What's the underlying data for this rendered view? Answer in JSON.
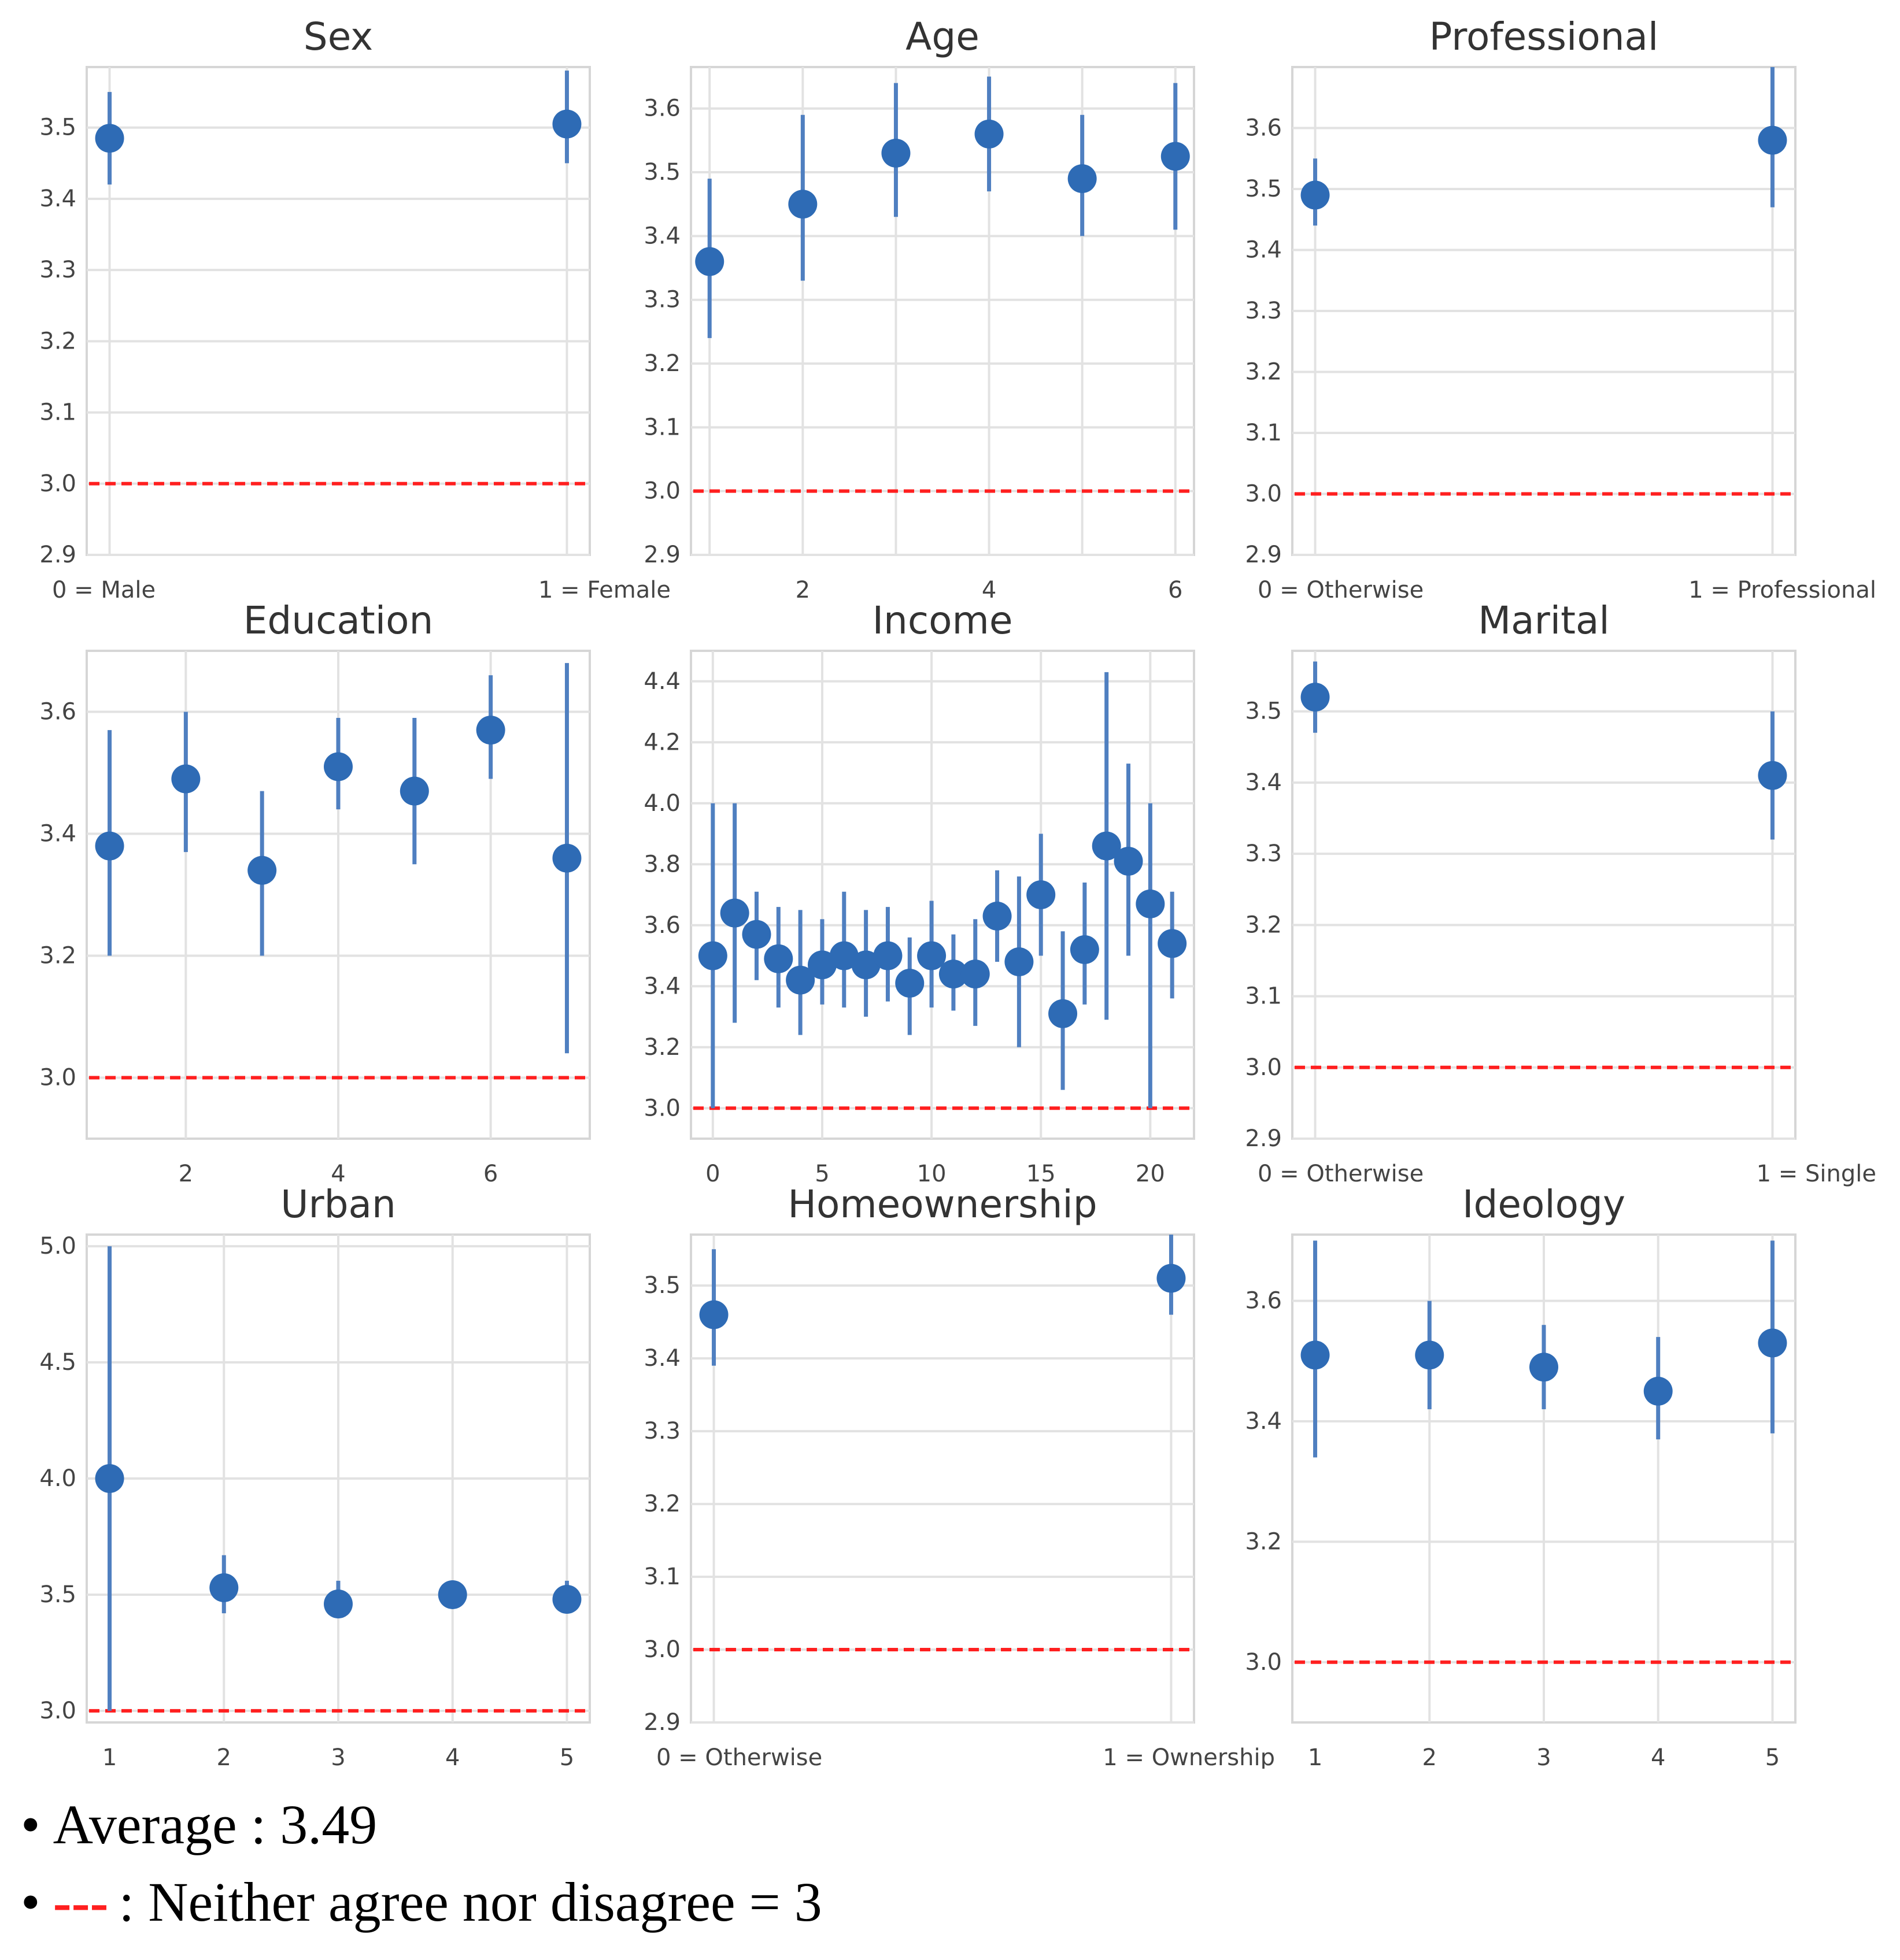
{
  "chart_data": [
    {
      "type": "scatter",
      "title": "Sex",
      "x": [
        0,
        1
      ],
      "y": [
        3.485,
        3.505
      ],
      "ci": [
        [
          3.42,
          3.55
        ],
        [
          3.45,
          3.58
        ]
      ],
      "xlim": [
        -0.05,
        1.05
      ],
      "ylim": [
        2.9,
        3.585
      ],
      "yticks": [
        {
          "v": 2.9,
          "label": "2.9"
        },
        {
          "v": 3.0,
          "label": "3.0"
        },
        {
          "v": 3.1,
          "label": "3.1"
        },
        {
          "v": 3.2,
          "label": "3.2"
        },
        {
          "v": 3.3,
          "label": "3.3"
        },
        {
          "v": 3.4,
          "label": "3.4"
        },
        {
          "v": 3.5,
          "label": "3.5"
        }
      ],
      "xticks": [
        {
          "v": 0,
          "label": "0 = Male"
        },
        {
          "v": 1,
          "label": "1 = Female"
        }
      ],
      "reference_line": 3.0
    },
    {
      "type": "scatter",
      "title": "Age",
      "x": [
        1,
        2,
        3,
        4,
        5,
        6
      ],
      "y": [
        3.36,
        3.45,
        3.53,
        3.56,
        3.49,
        3.525
      ],
      "ci": [
        [
          3.24,
          3.49
        ],
        [
          3.33,
          3.59
        ],
        [
          3.43,
          3.64
        ],
        [
          3.47,
          3.65
        ],
        [
          3.4,
          3.59
        ],
        [
          3.41,
          3.64
        ]
      ],
      "xlim": [
        0.8,
        6.2
      ],
      "ylim": [
        2.9,
        3.665
      ],
      "yticks": [
        {
          "v": 2.9,
          "label": "2.9"
        },
        {
          "v": 3.0,
          "label": "3.0"
        },
        {
          "v": 3.1,
          "label": "3.1"
        },
        {
          "v": 3.2,
          "label": "3.2"
        },
        {
          "v": 3.3,
          "label": "3.3"
        },
        {
          "v": 3.4,
          "label": "3.4"
        },
        {
          "v": 3.5,
          "label": "3.5"
        },
        {
          "v": 3.6,
          "label": "3.6"
        }
      ],
      "xticks": [
        {
          "v": 2,
          "label": "2"
        },
        {
          "v": 4,
          "label": "4"
        },
        {
          "v": 6,
          "label": "6"
        }
      ],
      "xgrid": [
        1,
        2,
        3,
        4,
        5,
        6
      ],
      "reference_line": 3.0
    },
    {
      "type": "scatter",
      "title": "Professional",
      "x": [
        0,
        1
      ],
      "y": [
        3.49,
        3.58
      ],
      "ci": [
        [
          3.44,
          3.55
        ],
        [
          3.47,
          3.7
        ]
      ],
      "xlim": [
        -0.05,
        1.05
      ],
      "ylim": [
        2.9,
        3.7
      ],
      "yticks": [
        {
          "v": 2.9,
          "label": "2.9"
        },
        {
          "v": 3.0,
          "label": "3.0"
        },
        {
          "v": 3.1,
          "label": "3.1"
        },
        {
          "v": 3.2,
          "label": "3.2"
        },
        {
          "v": 3.3,
          "label": "3.3"
        },
        {
          "v": 3.4,
          "label": "3.4"
        },
        {
          "v": 3.5,
          "label": "3.5"
        },
        {
          "v": 3.6,
          "label": "3.6"
        }
      ],
      "xticks": [
        {
          "v": 0,
          "label": "0 = Otherwise"
        },
        {
          "v": 1,
          "label": "1 = Professional"
        }
      ],
      "reference_line": 3.0
    },
    {
      "type": "scatter",
      "title": "Education",
      "x": [
        1,
        2,
        3,
        4,
        5,
        6,
        7
      ],
      "y": [
        3.38,
        3.49,
        3.34,
        3.51,
        3.47,
        3.57,
        3.36
      ],
      "ci": [
        [
          3.2,
          3.57
        ],
        [
          3.37,
          3.6
        ],
        [
          3.2,
          3.47
        ],
        [
          3.44,
          3.59
        ],
        [
          3.35,
          3.59
        ],
        [
          3.49,
          3.66
        ],
        [
          3.04,
          3.68
        ]
      ],
      "xlim": [
        0.7,
        7.3
      ],
      "ylim": [
        2.9,
        3.7
      ],
      "yticks": [
        {
          "v": 3.0,
          "label": "3.0"
        },
        {
          "v": 3.2,
          "label": "3.2"
        },
        {
          "v": 3.4,
          "label": "3.4"
        },
        {
          "v": 3.6,
          "label": "3.6"
        }
      ],
      "xticks": [
        {
          "v": 2,
          "label": "2"
        },
        {
          "v": 4,
          "label": "4"
        },
        {
          "v": 6,
          "label": "6"
        }
      ],
      "xgrid": [
        2,
        4,
        6
      ],
      "reference_line": 3.0
    },
    {
      "type": "scatter",
      "title": "Income",
      "x": [
        0,
        1,
        2,
        3,
        4,
        5,
        6,
        7,
        8,
        9,
        10,
        11,
        12,
        13,
        14,
        15,
        16,
        17,
        18,
        19,
        20,
        21
      ],
      "y": [
        3.5,
        3.64,
        3.57,
        3.49,
        3.42,
        3.47,
        3.5,
        3.47,
        3.5,
        3.41,
        3.5,
        3.44,
        3.44,
        3.63,
        3.48,
        3.7,
        3.31,
        3.52,
        3.86,
        3.81,
        3.67,
        3.54
      ],
      "ci": [
        [
          3.0,
          4.0
        ],
        [
          3.28,
          4.0
        ],
        [
          3.42,
          3.71
        ],
        [
          3.33,
          3.66
        ],
        [
          3.24,
          3.65
        ],
        [
          3.34,
          3.62
        ],
        [
          3.33,
          3.71
        ],
        [
          3.3,
          3.65
        ],
        [
          3.35,
          3.66
        ],
        [
          3.24,
          3.56
        ],
        [
          3.33,
          3.68
        ],
        [
          3.32,
          3.57
        ],
        [
          3.27,
          3.62
        ],
        [
          3.48,
          3.78
        ],
        [
          3.2,
          3.76
        ],
        [
          3.5,
          3.9
        ],
        [
          3.06,
          3.58
        ],
        [
          3.34,
          3.74
        ],
        [
          3.29,
          4.43
        ],
        [
          3.5,
          4.13
        ],
        [
          3.0,
          4.0
        ],
        [
          3.36,
          3.71
        ]
      ],
      "xlim": [
        -1,
        22
      ],
      "ylim": [
        2.9,
        4.5
      ],
      "yticks": [
        {
          "v": 3.0,
          "label": "3.0"
        },
        {
          "v": 3.2,
          "label": "3.2"
        },
        {
          "v": 3.4,
          "label": "3.4"
        },
        {
          "v": 3.6,
          "label": "3.6"
        },
        {
          "v": 3.8,
          "label": "3.8"
        },
        {
          "v": 4.0,
          "label": "4.0"
        },
        {
          "v": 4.2,
          "label": "4.2"
        },
        {
          "v": 4.4,
          "label": "4.4"
        }
      ],
      "xticks": [
        {
          "v": 0,
          "label": "0"
        },
        {
          "v": 5,
          "label": "5"
        },
        {
          "v": 10,
          "label": "10"
        },
        {
          "v": 15,
          "label": "15"
        },
        {
          "v": 20,
          "label": "20"
        }
      ],
      "xgrid": [
        0,
        5,
        10,
        15,
        20
      ],
      "reference_line": 3.0
    },
    {
      "type": "scatter",
      "title": "Marital",
      "x": [
        0,
        1
      ],
      "y": [
        3.52,
        3.41
      ],
      "ci": [
        [
          3.47,
          3.57
        ],
        [
          3.32,
          3.5
        ]
      ],
      "xlim": [
        -0.05,
        1.05
      ],
      "ylim": [
        2.9,
        3.585
      ],
      "yticks": [
        {
          "v": 2.9,
          "label": "2.9"
        },
        {
          "v": 3.0,
          "label": "3.0"
        },
        {
          "v": 3.1,
          "label": "3.1"
        },
        {
          "v": 3.2,
          "label": "3.2"
        },
        {
          "v": 3.3,
          "label": "3.3"
        },
        {
          "v": 3.4,
          "label": "3.4"
        },
        {
          "v": 3.5,
          "label": "3.5"
        }
      ],
      "xticks": [
        {
          "v": 0,
          "label": "0 = Otherwise"
        },
        {
          "v": 1,
          "label": "1 = Single"
        }
      ],
      "reference_line": 3.0
    },
    {
      "type": "scatter",
      "title": "Urban",
      "x": [
        1,
        2,
        3,
        4,
        5
      ],
      "y": [
        4.0,
        3.53,
        3.46,
        3.5,
        3.48
      ],
      "ci": [
        [
          3.0,
          5.0
        ],
        [
          3.42,
          3.67
        ],
        [
          3.42,
          3.56
        ],
        [
          3.47,
          3.55
        ],
        [
          3.44,
          3.56
        ]
      ],
      "xlim": [
        0.8,
        5.2
      ],
      "ylim": [
        2.95,
        5.05
      ],
      "yticks": [
        {
          "v": 3.0,
          "label": "3.0"
        },
        {
          "v": 3.5,
          "label": "3.5"
        },
        {
          "v": 4.0,
          "label": "4.0"
        },
        {
          "v": 4.5,
          "label": "4.5"
        },
        {
          "v": 5.0,
          "label": "5.0"
        }
      ],
      "xticks": [
        {
          "v": 1,
          "label": "1"
        },
        {
          "v": 2,
          "label": "2"
        },
        {
          "v": 3,
          "label": "3"
        },
        {
          "v": 4,
          "label": "4"
        },
        {
          "v": 5,
          "label": "5"
        }
      ],
      "xgrid": [
        2,
        3,
        4,
        5
      ],
      "reference_line": 3.0
    },
    {
      "type": "scatter",
      "title": "Homeownership",
      "x": [
        0,
        1
      ],
      "y": [
        3.46,
        3.51
      ],
      "ci": [
        [
          3.39,
          3.55
        ],
        [
          3.46,
          3.57
        ]
      ],
      "xlim": [
        -0.05,
        1.05
      ],
      "ylim": [
        2.9,
        3.57
      ],
      "yticks": [
        {
          "v": 2.9,
          "label": "2.9"
        },
        {
          "v": 3.0,
          "label": "3.0"
        },
        {
          "v": 3.1,
          "label": "3.1"
        },
        {
          "v": 3.2,
          "label": "3.2"
        },
        {
          "v": 3.3,
          "label": "3.3"
        },
        {
          "v": 3.4,
          "label": "3.4"
        },
        {
          "v": 3.5,
          "label": "3.5"
        }
      ],
      "xticks": [
        {
          "v": 0,
          "label": "0 = Otherwise"
        },
        {
          "v": 1,
          "label": "1 = Ownership"
        }
      ],
      "reference_line": 3.0
    },
    {
      "type": "scatter",
      "title": "Ideology",
      "x": [
        1,
        2,
        3,
        4,
        5
      ],
      "y": [
        3.51,
        3.51,
        3.49,
        3.45,
        3.53
      ],
      "ci": [
        [
          3.34,
          3.7
        ],
        [
          3.42,
          3.6
        ],
        [
          3.42,
          3.56
        ],
        [
          3.37,
          3.54
        ],
        [
          3.38,
          3.7
        ]
      ],
      "xlim": [
        0.8,
        5.2
      ],
      "ylim": [
        2.9,
        3.71
      ],
      "yticks": [
        {
          "v": 3.0,
          "label": "3.0"
        },
        {
          "v": 3.2,
          "label": "3.2"
        },
        {
          "v": 3.4,
          "label": "3.4"
        },
        {
          "v": 3.6,
          "label": "3.6"
        }
      ],
      "xticks": [
        {
          "v": 1,
          "label": "1"
        },
        {
          "v": 2,
          "label": "2"
        },
        {
          "v": 3,
          "label": "3"
        },
        {
          "v": 4,
          "label": "4"
        },
        {
          "v": 5,
          "label": "5"
        }
      ],
      "xgrid": [
        2,
        3,
        4,
        5
      ],
      "reference_line": 3.0
    }
  ],
  "notes": {
    "bullet": "•",
    "average": "Average : 3.49",
    "legend_dash": "---",
    "legend_text": ": Neither agree nor disagree = 3"
  }
}
